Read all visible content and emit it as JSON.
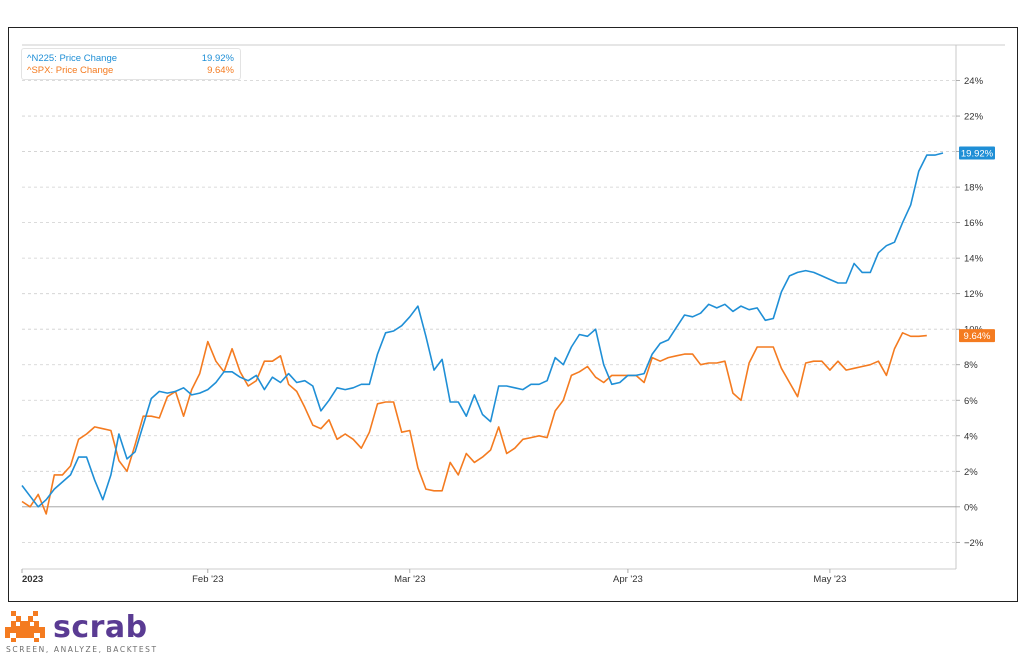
{
  "chart_data": {
    "type": "line",
    "y_unit": "%",
    "ylim": [
      -3.5,
      26
    ],
    "y_ticks": [
      -2,
      0,
      2,
      4,
      6,
      8,
      10,
      12,
      14,
      16,
      18,
      20,
      22,
      24
    ],
    "y_tick_labels": [
      "−2%",
      "0%",
      "2%",
      "4%",
      "6%",
      "8%",
      "10%",
      "12%",
      "14%",
      "16%",
      "18%",
      "20%",
      "22%",
      "24%"
    ],
    "x_tick_labels": [
      "2023",
      "Feb '23",
      "Mar '23",
      "Apr '23",
      "May '23"
    ],
    "x_tick_index": [
      0,
      23,
      48,
      75,
      100
    ],
    "grid": "horizontal dashed",
    "legend_position": "top-left",
    "series": [
      {
        "name": "^N225: Price Change",
        "last_value_label": "19.92%",
        "color": "#1f8fd6",
        "values": [
          1.2,
          0.6,
          0.0,
          0.4,
          1.0,
          1.4,
          1.8,
          2.8,
          2.8,
          1.5,
          0.4,
          1.8,
          4.1,
          2.7,
          3.1,
          4.6,
          6.1,
          6.5,
          6.4,
          6.5,
          6.7,
          6.3,
          6.4,
          6.6,
          7.0,
          7.6,
          7.6,
          7.3,
          7.1,
          7.4,
          6.6,
          7.3,
          7.0,
          7.5,
          7.0,
          7.1,
          6.8,
          5.4,
          6.0,
          6.7,
          6.6,
          6.7,
          6.9,
          6.9,
          8.6,
          9.8,
          9.9,
          10.2,
          10.7,
          11.3,
          9.6,
          7.7,
          8.3,
          5.9,
          5.9,
          5.1,
          6.3,
          5.2,
          4.8,
          6.8,
          6.8,
          6.7,
          6.6,
          6.9,
          6.9,
          7.1,
          8.4,
          8.0,
          9.0,
          9.7,
          9.6,
          10.0,
          8.0,
          6.9,
          7.0,
          7.4,
          7.4,
          7.5,
          8.6,
          9.2,
          9.4,
          10.1,
          10.8,
          10.7,
          10.9,
          11.4,
          11.2,
          11.4,
          11.0,
          11.3,
          11.1,
          11.2,
          10.5,
          10.6,
          12.1,
          13.0,
          13.2,
          13.3,
          13.2,
          13.0,
          12.8,
          12.6,
          12.6,
          13.7,
          13.2,
          13.2,
          14.3,
          14.7,
          14.9,
          16.0,
          17.0,
          18.9,
          19.8,
          19.8,
          19.92
        ]
      },
      {
        "name": "^SPX: Price Change",
        "last_value_label": "9.64%",
        "color": "#f47b20",
        "values": [
          0.3,
          0.0,
          0.7,
          -0.4,
          1.8,
          1.8,
          2.3,
          3.8,
          4.1,
          4.5,
          4.4,
          4.3,
          2.6,
          2.0,
          3.5,
          5.1,
          5.1,
          5.0,
          6.2,
          6.5,
          5.1,
          6.6,
          7.5,
          9.3,
          8.2,
          7.6,
          8.9,
          7.6,
          6.8,
          7.1,
          8.2,
          8.2,
          8.5,
          6.9,
          6.5,
          5.6,
          4.6,
          4.4,
          4.9,
          3.8,
          4.1,
          3.8,
          3.3,
          4.2,
          5.8,
          5.9,
          5.9,
          4.2,
          4.3,
          2.2,
          1.0,
          0.9,
          0.9,
          2.5,
          1.8,
          3.0,
          2.5,
          2.8,
          3.2,
          4.5,
          3.0,
          3.3,
          3.8,
          3.9,
          4.0,
          3.9,
          5.4,
          6.0,
          7.4,
          7.6,
          7.9,
          7.3,
          7.0,
          7.4,
          7.4,
          7.4,
          7.4,
          7.0,
          8.4,
          8.2,
          8.4,
          8.5,
          8.6,
          8.6,
          8.0,
          8.1,
          8.1,
          8.2,
          6.4,
          6.0,
          8.1,
          9.0,
          9.0,
          9.0,
          7.8,
          7.0,
          6.2,
          8.1,
          8.2,
          8.2,
          7.7,
          8.2,
          7.7,
          7.8,
          7.9,
          8.0,
          8.2,
          7.4,
          8.9,
          9.8,
          9.6,
          9.6,
          9.64
        ]
      }
    ]
  },
  "brand": {
    "logo_name": "scrab",
    "tagline": "SCREEN, ANALYZE, BACKTEST",
    "color": "#5a3b93",
    "accent": "#f47b20"
  }
}
